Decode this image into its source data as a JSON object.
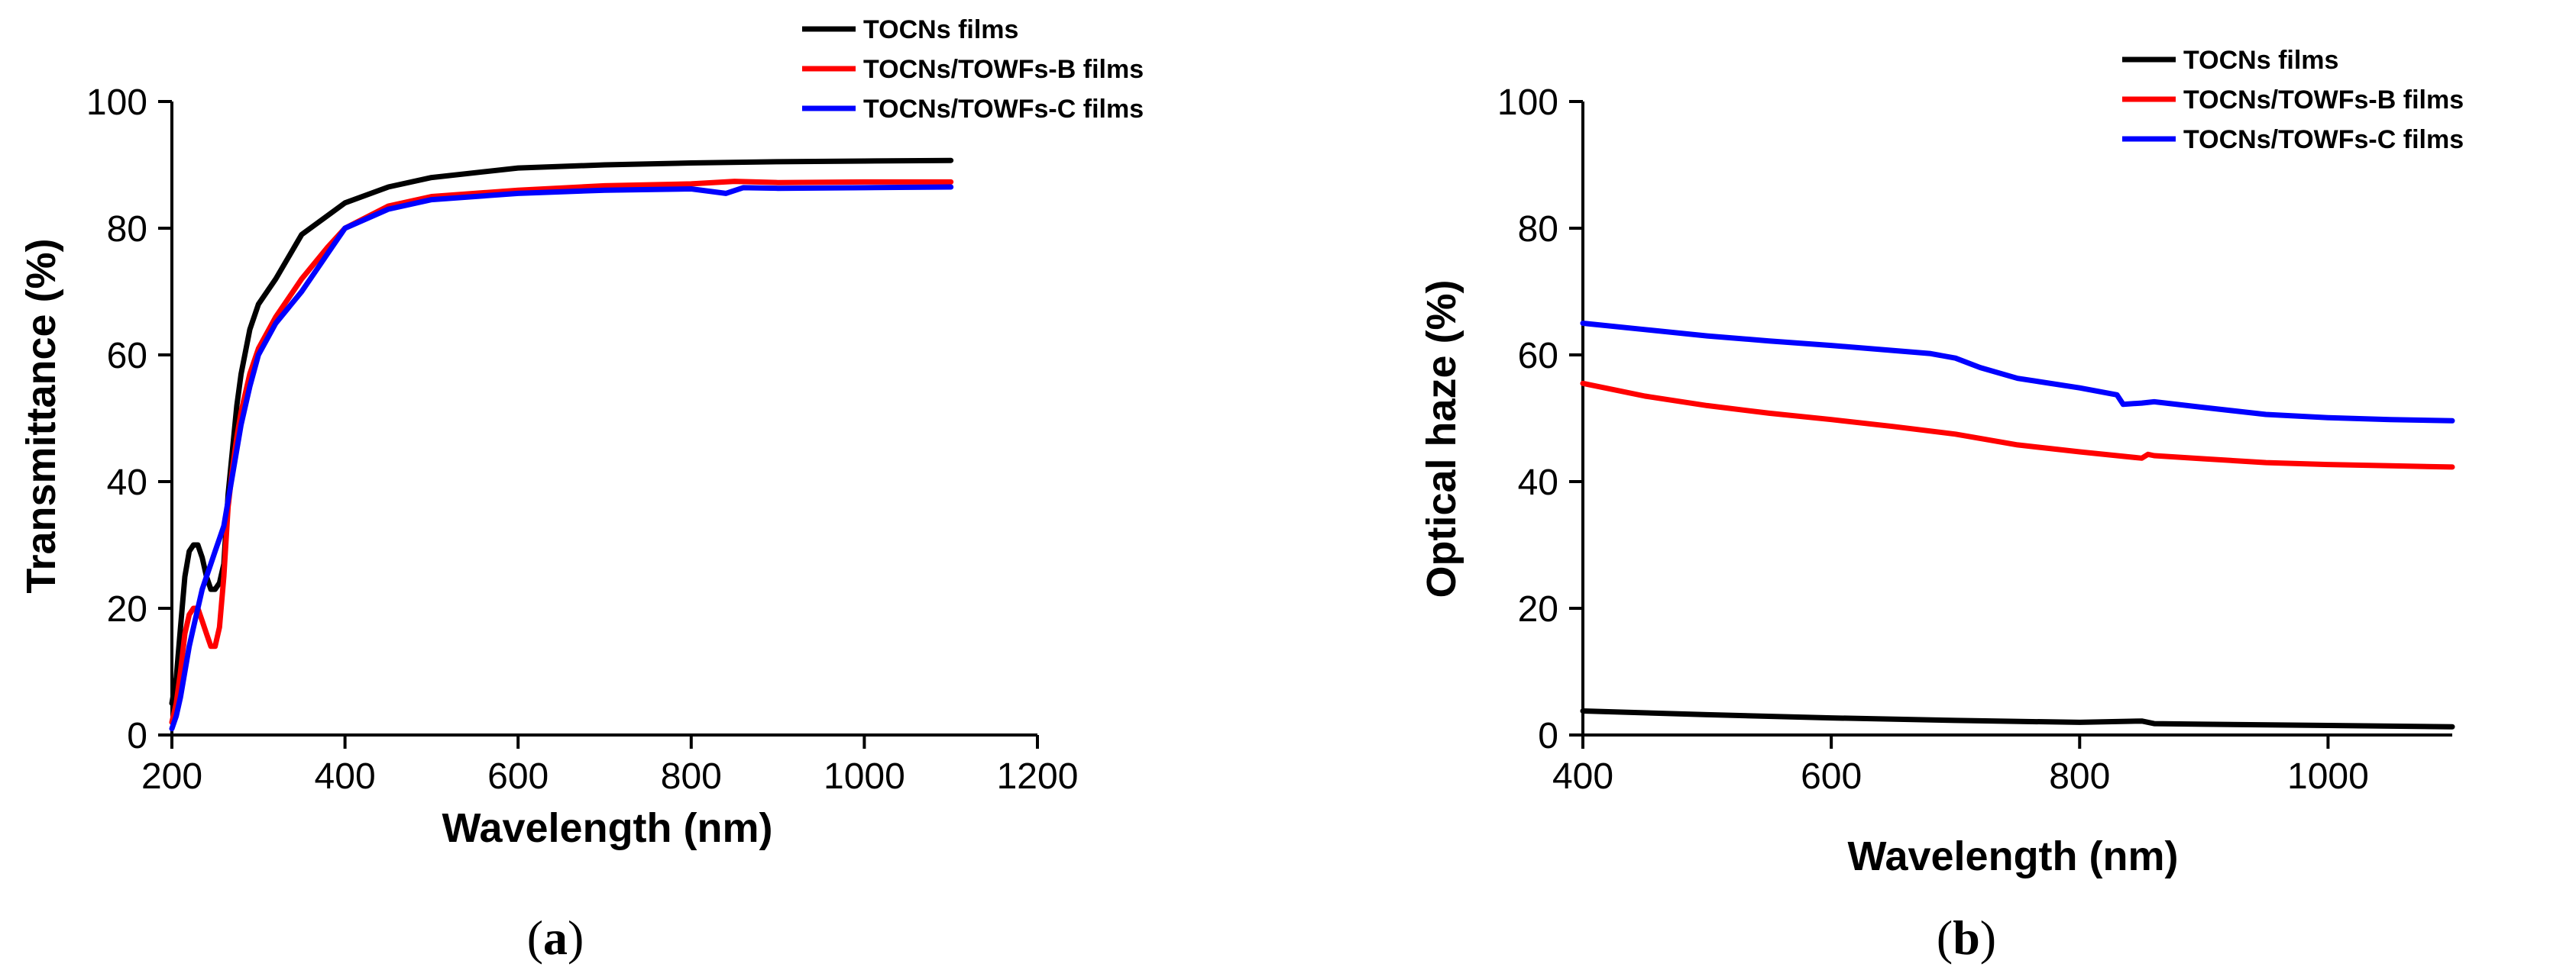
{
  "chart_data": [
    {
      "type": "line",
      "panel": "a",
      "xlabel": "Wavelength (nm)",
      "ylabel": "Transmittance (%)",
      "xlim": [
        200,
        1200
      ],
      "ylim": [
        0,
        100
      ],
      "xticks": [
        200,
        400,
        600,
        800,
        1000,
        1200
      ],
      "yticks": [
        0,
        20,
        40,
        60,
        80,
        100
      ],
      "legend_position": "top-right",
      "series": [
        {
          "name": "TOCNs films",
          "color": "#000000",
          "x": [
            200,
            205,
            210,
            215,
            220,
            225,
            230,
            235,
            240,
            245,
            250,
            255,
            260,
            265,
            270,
            275,
            280,
            290,
            300,
            320,
            350,
            380,
            400,
            450,
            500,
            600,
            700,
            800,
            900,
            1000,
            1100
          ],
          "y": [
            5,
            9,
            17,
            25,
            29,
            30,
            30,
            28,
            25,
            23,
            23,
            24,
            27,
            38,
            45,
            52,
            57,
            64,
            68,
            72,
            79,
            82,
            84,
            86.5,
            88,
            89.5,
            90,
            90.3,
            90.5,
            90.6,
            90.7
          ]
        },
        {
          "name": "TOCNs/TOWFs-B films",
          "color": "#ff0000",
          "x": [
            200,
            205,
            210,
            215,
            220,
            225,
            230,
            235,
            240,
            245,
            250,
            255,
            260,
            265,
            270,
            275,
            280,
            290,
            300,
            320,
            350,
            380,
            400,
            450,
            500,
            600,
            700,
            800,
            850,
            900,
            1000,
            1100
          ],
          "y": [
            2,
            5,
            10,
            16,
            19,
            20,
            20,
            18,
            16,
            14,
            14,
            17,
            25,
            36,
            42,
            47,
            51,
            57,
            61,
            66,
            72,
            77,
            80,
            83.5,
            85,
            86,
            86.7,
            87,
            87.4,
            87.2,
            87.3,
            87.3
          ]
        },
        {
          "name": "TOCNs/TOWFs-C films",
          "color": "#0000ff",
          "x": [
            200,
            205,
            210,
            215,
            220,
            225,
            230,
            235,
            240,
            245,
            250,
            255,
            260,
            265,
            270,
            280,
            290,
            300,
            320,
            350,
            370,
            380,
            400,
            450,
            500,
            600,
            700,
            800,
            840,
            860,
            900,
            1000,
            1100
          ],
          "y": [
            1,
            3,
            6,
            10,
            14,
            17,
            20,
            23,
            25,
            27,
            29,
            31,
            33,
            37,
            41,
            49,
            55,
            60,
            65,
            70,
            74,
            76,
            80,
            83,
            84.5,
            85.5,
            86,
            86.2,
            85.5,
            86.4,
            86.3,
            86.4,
            86.5
          ]
        }
      ]
    },
    {
      "type": "line",
      "panel": "b",
      "xlabel": "Wavelength (nm)",
      "ylabel": "Optical haze (%)",
      "xlim": [
        400,
        1100
      ],
      "ylim": [
        0,
        100
      ],
      "xticks": [
        400,
        600,
        800,
        1000
      ],
      "yticks": [
        0,
        20,
        40,
        60,
        80,
        100
      ],
      "legend_position": "top-right",
      "series": [
        {
          "name": "TOCNs films",
          "color": "#000000",
          "x": [
            400,
            500,
            600,
            700,
            800,
            850,
            860,
            900,
            1000,
            1100
          ],
          "y": [
            3.8,
            3.2,
            2.7,
            2.3,
            2.0,
            2.2,
            1.8,
            1.7,
            1.5,
            1.3
          ]
        },
        {
          "name": "TOCNs/TOWFs-B films",
          "color": "#ff0000",
          "x": [
            400,
            450,
            500,
            550,
            600,
            650,
            700,
            750,
            800,
            850,
            855,
            860,
            900,
            950,
            1000,
            1050,
            1100
          ],
          "y": [
            55.5,
            53.5,
            52,
            50.8,
            49.8,
            48.7,
            47.5,
            45.8,
            44.7,
            43.7,
            44.3,
            44.1,
            43.6,
            43.0,
            42.7,
            42.5,
            42.3
          ]
        },
        {
          "name": "TOCNs/TOWFs-C films",
          "color": "#0000ff",
          "x": [
            400,
            450,
            500,
            550,
            600,
            650,
            680,
            700,
            720,
            750,
            800,
            830,
            835,
            850,
            860,
            900,
            950,
            1000,
            1050,
            1100
          ],
          "y": [
            65,
            64,
            63,
            62.2,
            61.5,
            60.7,
            60.2,
            59.5,
            58,
            56.3,
            54.8,
            53.7,
            52.2,
            52.4,
            52.6,
            51.7,
            50.6,
            50.1,
            49.8,
            49.6
          ]
        }
      ]
    }
  ],
  "panel_labels": {
    "a": "a",
    "b": "b",
    "open": "(",
    "close": ")"
  }
}
